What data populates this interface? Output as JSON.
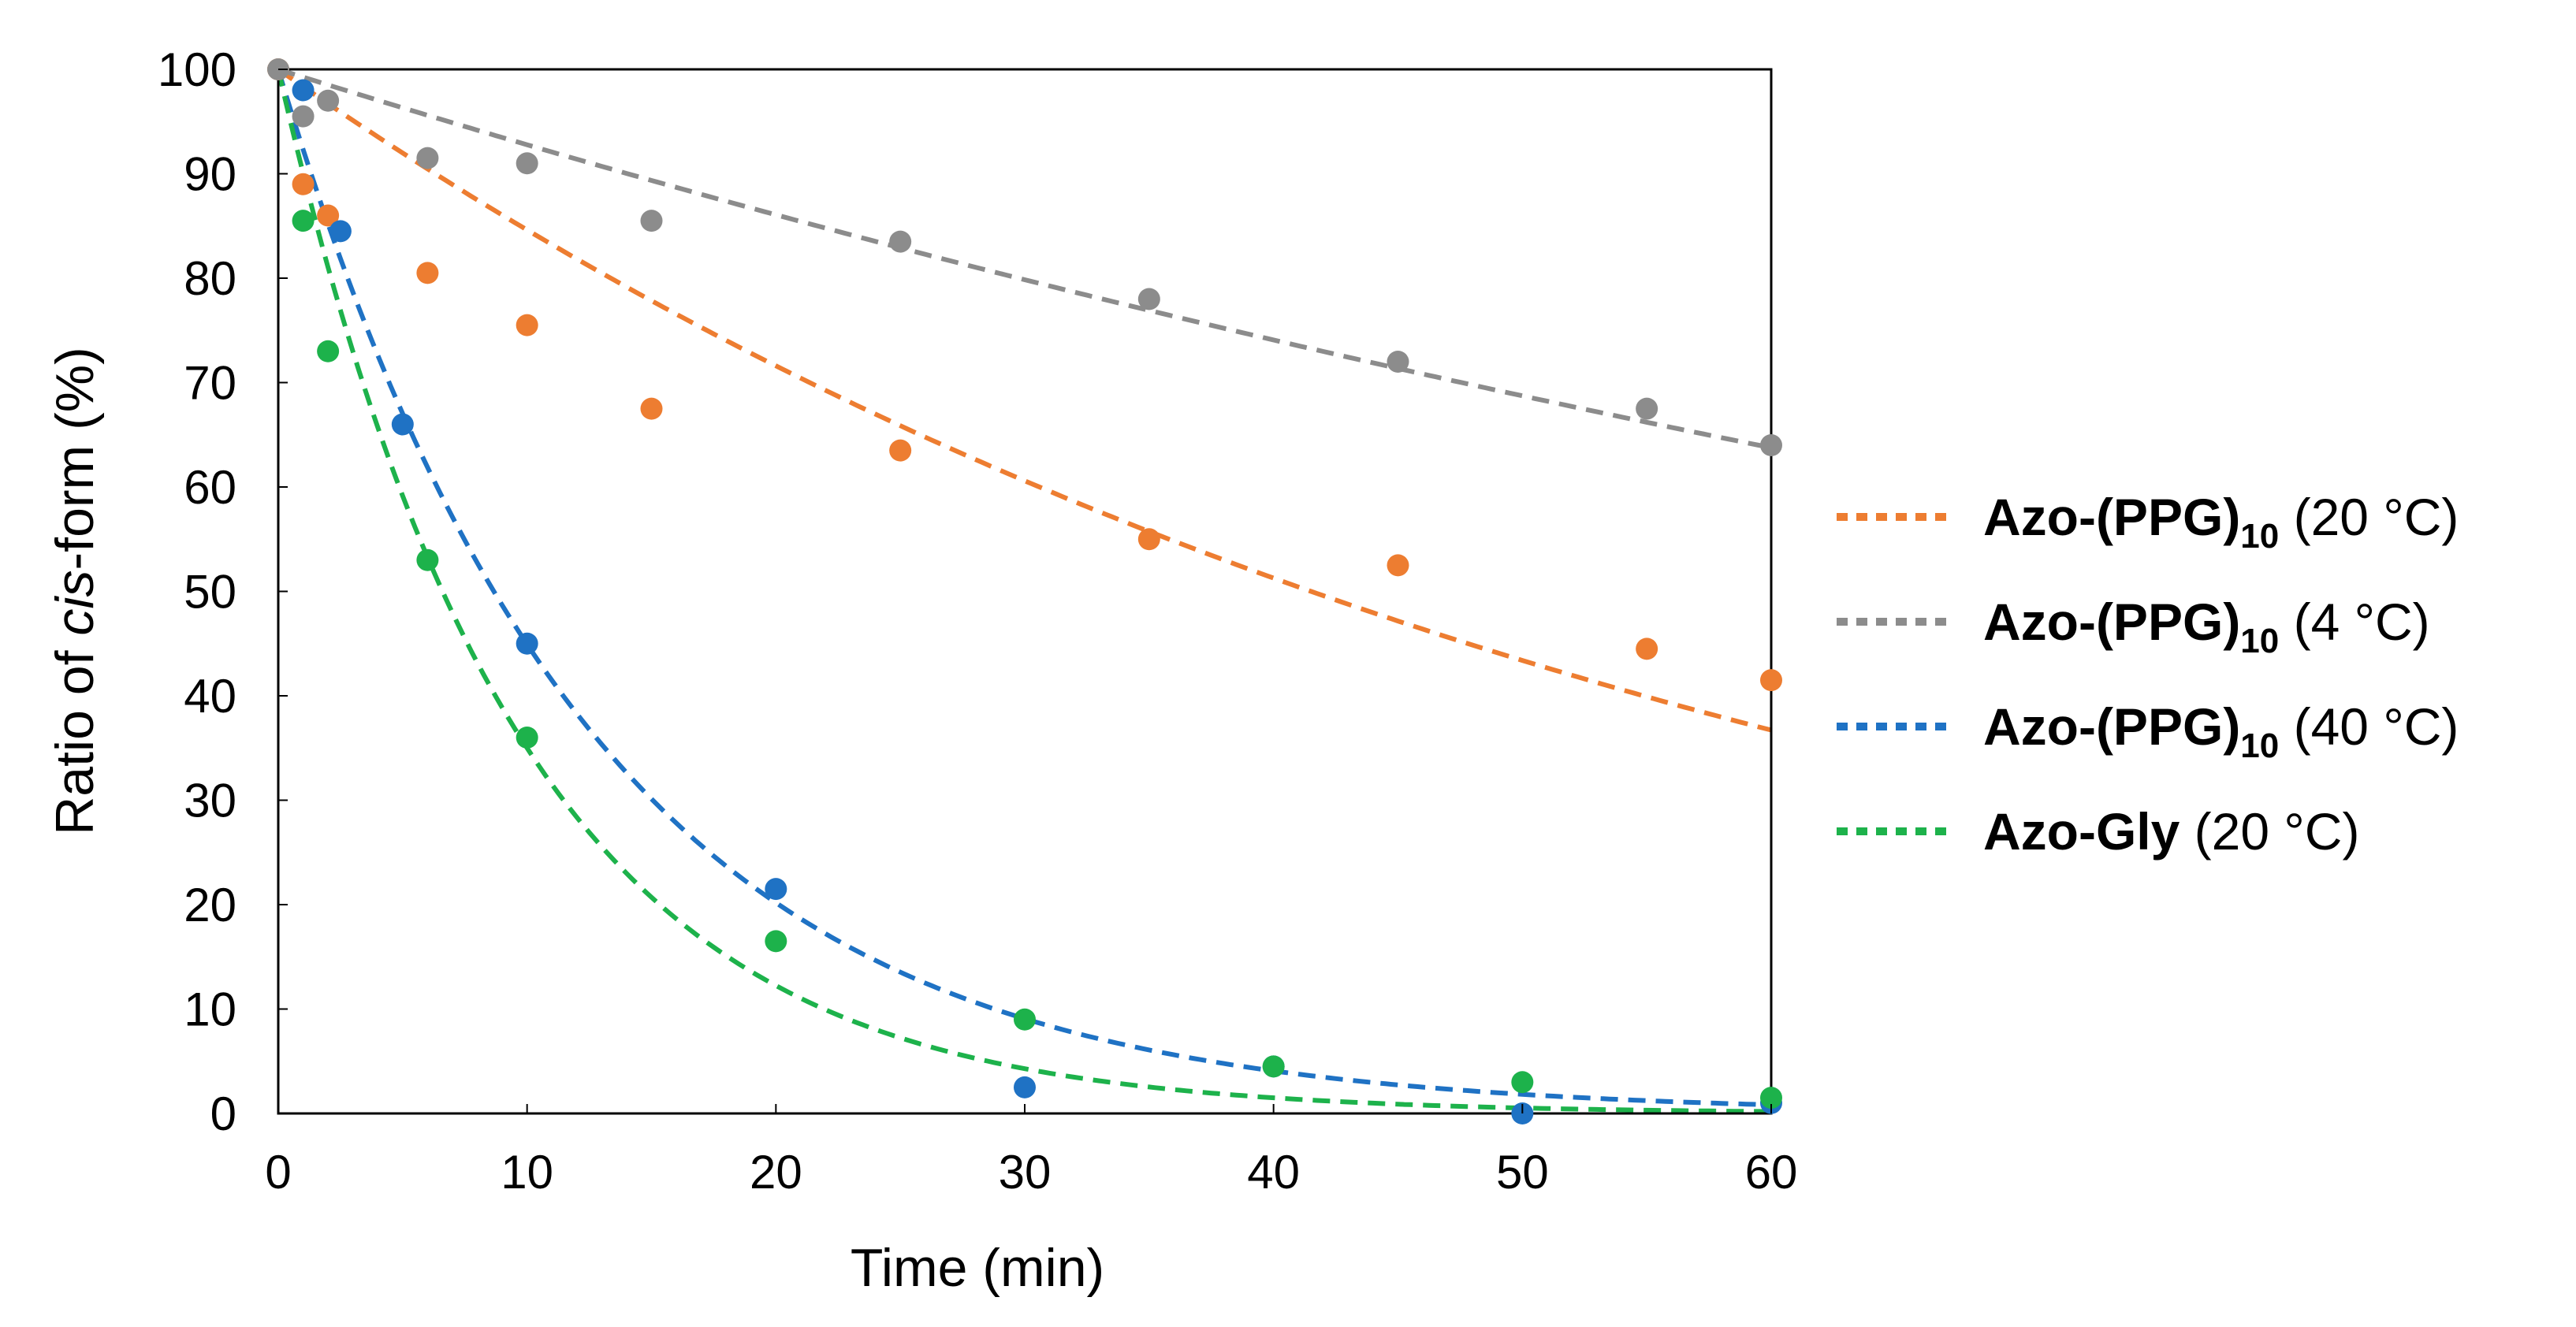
{
  "chart_data": {
    "type": "scatter",
    "title": "",
    "xlabel": "Time (min)",
    "ylabel": {
      "prefix": "Ratio of ",
      "italic": "cis",
      "suffix": "-form (%)"
    },
    "xlim": [
      0,
      60
    ],
    "ylim": [
      0,
      100
    ],
    "xticks": [
      0,
      10,
      20,
      30,
      40,
      50,
      60
    ],
    "yticks": [
      0,
      10,
      20,
      30,
      40,
      50,
      60,
      70,
      80,
      90,
      100
    ],
    "grid": false,
    "legend_position": "right",
    "series": [
      {
        "name": "Azo-(PPG)10 (20 °C)",
        "legend": {
          "bold": "Azo-(PPG)",
          "sub": "10",
          "normal": " (20 °C)"
        },
        "color": "#ED7D31",
        "x": [
          0,
          1,
          2,
          6,
          10,
          15,
          25,
          35,
          45,
          55,
          60
        ],
        "y": [
          100,
          89,
          86,
          80.5,
          75.5,
          67.5,
          63.5,
          55,
          52.5,
          44.5,
          41.5
        ],
        "fit": {
          "model": "exp",
          "y0": 100,
          "k": 0.0167
        }
      },
      {
        "name": "Azo-(PPG)10 (4 °C)",
        "legend": {
          "bold": "Azo-(PPG)",
          "sub": "10",
          "normal": " (4 °C)"
        },
        "color": "#8C8C8C",
        "x": [
          0,
          1,
          2,
          6,
          10,
          15,
          25,
          35,
          45,
          55,
          60
        ],
        "y": [
          100,
          95.5,
          97,
          91.5,
          91,
          85.5,
          83.5,
          78,
          72,
          67.5,
          64
        ],
        "fit": {
          "model": "exp",
          "y0": 100,
          "k": 0.0075
        }
      },
      {
        "name": "Azo-(PPG)10 (40 °C)",
        "legend": {
          "bold": "Azo-(PPG)",
          "sub": "10",
          "normal": " (40 °C)"
        },
        "color": "#1F72C4",
        "x": [
          1,
          2.5,
          5,
          10,
          20,
          30,
          40,
          50,
          60
        ],
        "y": [
          98,
          84.5,
          66,
          45,
          21.5,
          2.5,
          4.5,
          0,
          1
        ],
        "fit": {
          "model": "exp",
          "y0": 100,
          "k": 0.08
        }
      },
      {
        "name": "Azo-Gly (20 °C)",
        "legend": {
          "bold": "Azo-Gly",
          "sub": "",
          "normal": " (20 °C)"
        },
        "color": "#1DB24B",
        "x": [
          1,
          2,
          6,
          10,
          20,
          30,
          40,
          50,
          60
        ],
        "y": [
          85.5,
          73,
          53,
          36,
          16.5,
          9,
          4.5,
          3,
          1.5
        ],
        "fit": {
          "model": "exp",
          "y0": 100,
          "k": 0.105
        }
      }
    ]
  }
}
